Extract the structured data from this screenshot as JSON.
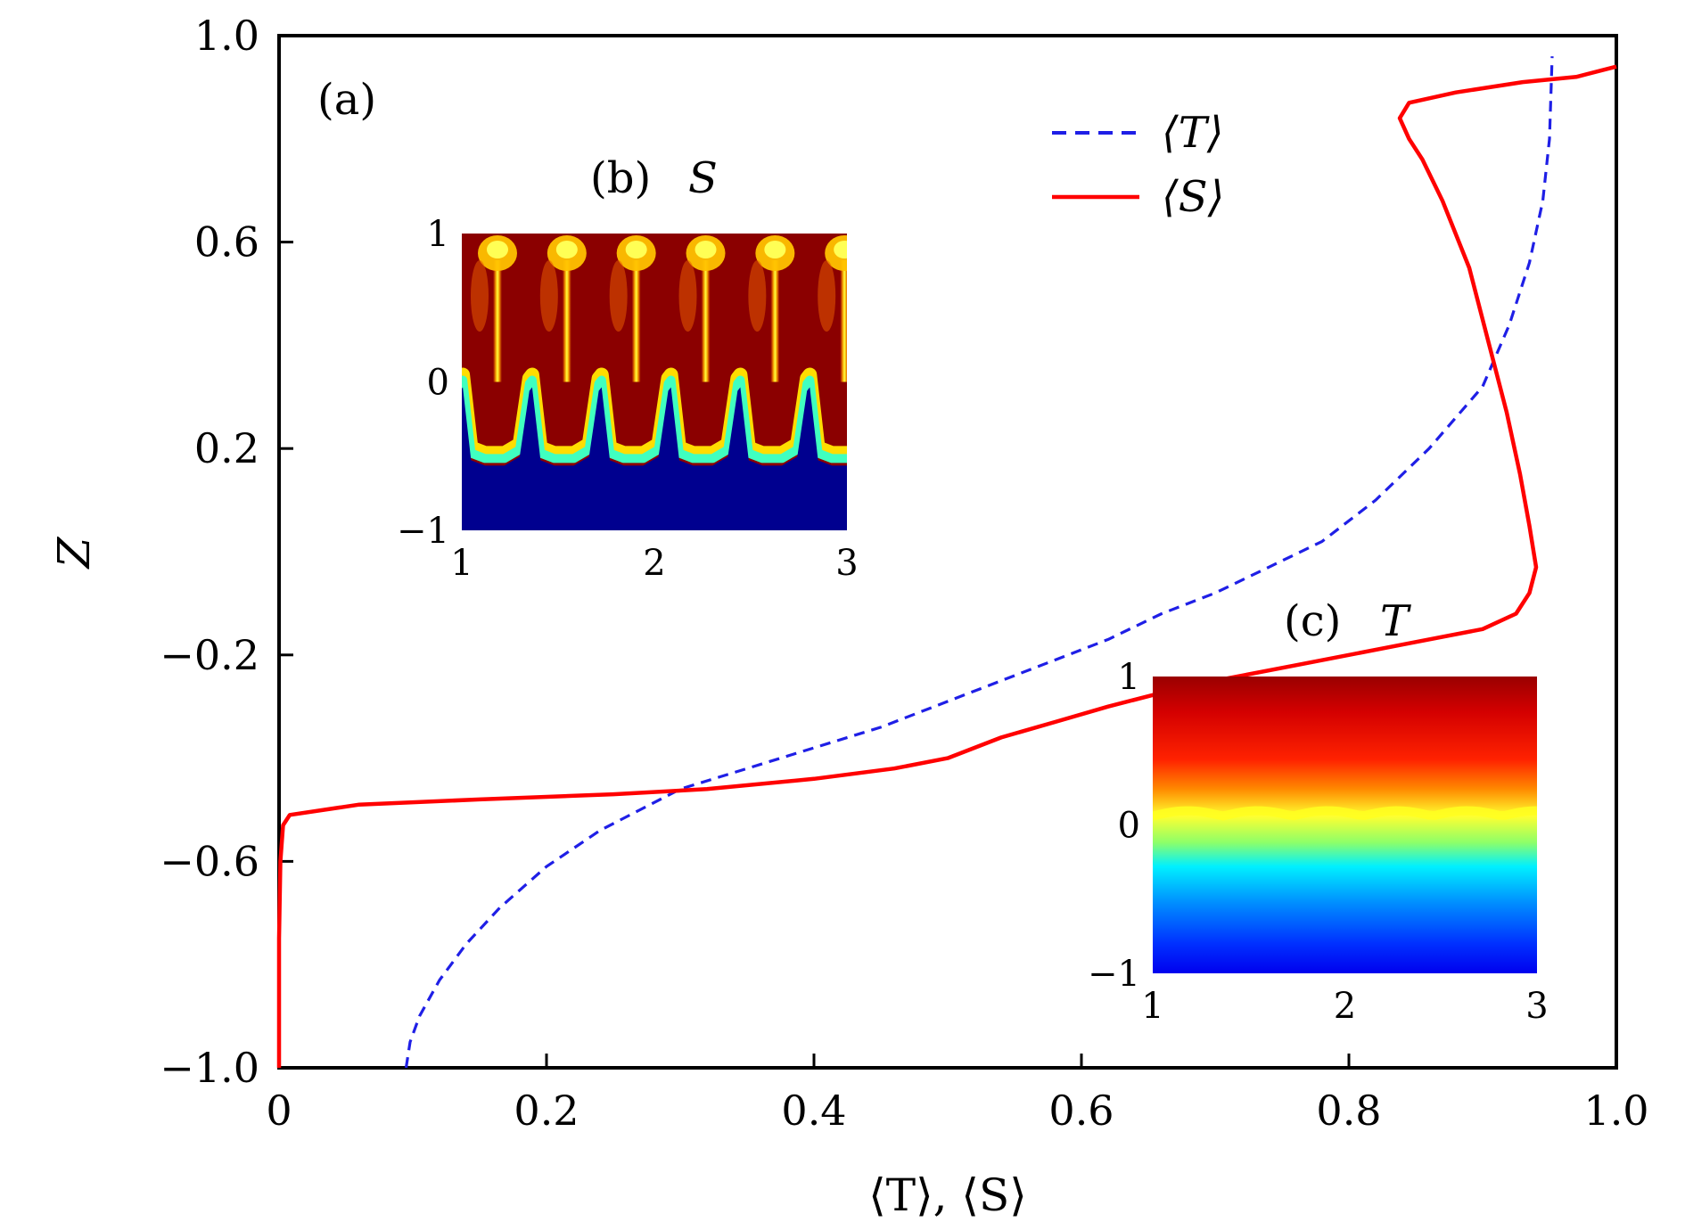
{
  "chart_data": [
    {
      "type": "line",
      "panel_label": "(a)",
      "xlabel": "⟨T⟩, ⟨S⟩",
      "ylabel": "Z",
      "xlim": [
        0,
        1.0
      ],
      "ylim": [
        -1.0,
        1.0
      ],
      "x_ticks": [
        0,
        0.2,
        0.4,
        0.6,
        0.8,
        1.0
      ],
      "x_tick_labels": [
        "0",
        "0.2",
        "0.4",
        "0.6",
        "0.8",
        "1.0"
      ],
      "y_ticks": [
        -1.0,
        -0.6,
        -0.2,
        0.2,
        0.6,
        1.0
      ],
      "y_tick_labels": [
        "−1.0",
        "−0.6",
        "−0.2",
        "0.2",
        "0.6",
        "1.0"
      ],
      "grid": false,
      "legend_position": "top-right",
      "series": [
        {
          "name": "⟨T⟩",
          "style": "dashed",
          "color": "#1f1fe6",
          "points": [
            [
              0.095,
              -1.0
            ],
            [
              0.098,
              -0.95
            ],
            [
              0.105,
              -0.9
            ],
            [
              0.12,
              -0.83
            ],
            [
              0.14,
              -0.76
            ],
            [
              0.165,
              -0.69
            ],
            [
              0.2,
              -0.61
            ],
            [
              0.24,
              -0.54
            ],
            [
              0.27,
              -0.5
            ],
            [
              0.3,
              -0.46
            ],
            [
              0.35,
              -0.42
            ],
            [
              0.4,
              -0.38
            ],
            [
              0.45,
              -0.34
            ],
            [
              0.49,
              -0.3
            ],
            [
              0.53,
              -0.26
            ],
            [
              0.58,
              -0.21
            ],
            [
              0.62,
              -0.17
            ],
            [
              0.66,
              -0.12
            ],
            [
              0.7,
              -0.08
            ],
            [
              0.74,
              -0.03
            ],
            [
              0.78,
              0.02
            ],
            [
              0.82,
              0.1
            ],
            [
              0.86,
              0.2
            ],
            [
              0.9,
              0.32
            ],
            [
              0.92,
              0.44
            ],
            [
              0.935,
              0.56
            ],
            [
              0.945,
              0.68
            ],
            [
              0.95,
              0.8
            ],
            [
              0.952,
              0.96
            ]
          ]
        },
        {
          "name": "⟨S⟩",
          "style": "solid",
          "color": "#ff0000",
          "points": [
            [
              0.0,
              -1.0
            ],
            [
              0.0,
              -0.9
            ],
            [
              0.0,
              -0.75
            ],
            [
              0.001,
              -0.6
            ],
            [
              0.003,
              -0.53
            ],
            [
              0.008,
              -0.51
            ],
            [
              0.06,
              -0.49
            ],
            [
              0.15,
              -0.48
            ],
            [
              0.25,
              -0.47
            ],
            [
              0.32,
              -0.46
            ],
            [
              0.4,
              -0.44
            ],
            [
              0.46,
              -0.42
            ],
            [
              0.5,
              -0.4
            ],
            [
              0.54,
              -0.36
            ],
            [
              0.58,
              -0.33
            ],
            [
              0.62,
              -0.3
            ],
            [
              0.68,
              -0.26
            ],
            [
              0.76,
              -0.22
            ],
            [
              0.84,
              -0.18
            ],
            [
              0.9,
              -0.15
            ],
            [
              0.925,
              -0.12
            ],
            [
              0.935,
              -0.08
            ],
            [
              0.94,
              -0.03
            ],
            [
              0.935,
              0.05
            ],
            [
              0.928,
              0.15
            ],
            [
              0.918,
              0.27
            ],
            [
              0.905,
              0.4
            ],
            [
              0.89,
              0.55
            ],
            [
              0.87,
              0.68
            ],
            [
              0.855,
              0.76
            ],
            [
              0.845,
              0.8
            ],
            [
              0.838,
              0.84
            ],
            [
              0.845,
              0.87
            ],
            [
              0.88,
              0.89
            ],
            [
              0.93,
              0.91
            ],
            [
              0.97,
              0.92
            ],
            [
              1.0,
              0.94
            ]
          ]
        }
      ]
    },
    {
      "type": "heatmap",
      "panel_label": "(b)",
      "title_var": "S",
      "xlim": [
        1,
        3
      ],
      "ylim": [
        -1,
        1
      ],
      "x_tick_labels": [
        "1",
        "2",
        "3"
      ],
      "y_tick_labels": [
        "1",
        "0",
        "−1"
      ],
      "colormap": "jet",
      "plume_count": 6
    },
    {
      "type": "heatmap",
      "panel_label": "(c)",
      "title_var": "T",
      "xlim": [
        1,
        3
      ],
      "ylim": [
        -1,
        1
      ],
      "x_tick_labels": [
        "1",
        "2",
        "3"
      ],
      "y_tick_labels": [
        "1",
        "0",
        "−1"
      ],
      "colormap": "jet",
      "plume_count": 6
    }
  ]
}
